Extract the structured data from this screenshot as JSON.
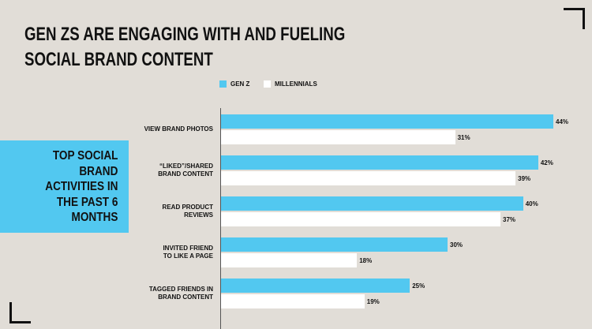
{
  "title_lines": [
    "GEN ZS ARE ENGAGING WITH AND FUELING",
    "SOCIAL BRAND CONTENT"
  ],
  "side_label_lines": [
    "TOP SOCIAL",
    "BRAND",
    "ACTIVITIES IN",
    "THE PAST 6",
    "MONTHS"
  ],
  "colors": {
    "background": "#e1ddd7",
    "gen_z": "#52c8f0",
    "millennials": "#ffffff",
    "side_box": "#52c8f0"
  },
  "chart_data": {
    "type": "bar",
    "orientation": "horizontal",
    "categories": [
      [
        "VIEW BRAND PHOTOS"
      ],
      [
        "“LIKED”/SHARED",
        "BRAND CONTENT"
      ],
      [
        "READ PRODUCT",
        "REVIEWS"
      ],
      [
        "INVITED FRIEND",
        "TO LIKE A PAGE"
      ],
      [
        "TAGGED FRIENDS IN",
        "BRAND CONTENT"
      ]
    ],
    "series": [
      {
        "name": "GEN Z",
        "values": [
          44,
          42,
          40,
          30,
          25
        ],
        "labels": [
          "44%",
          "42%",
          "40%",
          "30%",
          "25%"
        ]
      },
      {
        "name": "MILLENNIALS",
        "values": [
          31,
          39,
          37,
          18,
          19
        ],
        "labels": [
          "31%",
          "39%",
          "37%",
          "18%",
          "19%"
        ]
      }
    ],
    "unit": "%",
    "legend": "top",
    "grid": false
  }
}
